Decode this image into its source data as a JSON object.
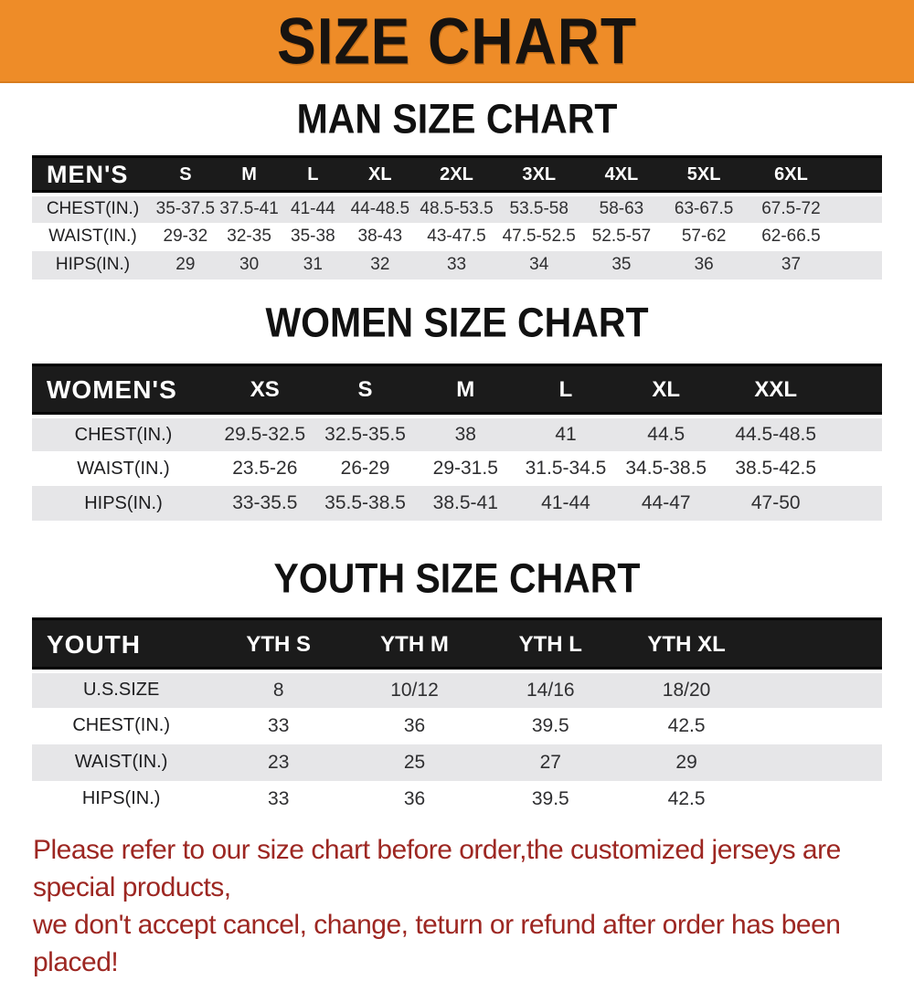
{
  "banner": {
    "title": "SIZE CHART"
  },
  "sections": [
    {
      "heading": "MAN SIZE CHART",
      "table": {
        "header": [
          "MEN'S",
          "S",
          "M",
          "L",
          "XL",
          "2XL",
          "3XL",
          "4XL",
          "5XL",
          "6XL"
        ],
        "rows": [
          {
            "label": "CHEST(IN.)",
            "values": [
              "35-37.5",
              "37.5-41",
              "41-44",
              "44-48.5",
              "48.5-53.5",
              "53.5-58",
              "58-63",
              "63-67.5",
              "67.5-72"
            ]
          },
          {
            "label": "WAIST(IN.)",
            "values": [
              "29-32",
              "32-35",
              "35-38",
              "38-43",
              "43-47.5",
              "47.5-52.5",
              "52.5-57",
              "57-62",
              "62-66.5"
            ]
          },
          {
            "label": "HIPS(IN.)",
            "values": [
              "29",
              "30",
              "31",
              "32",
              "33",
              "34",
              "35",
              "36",
              "37"
            ]
          }
        ]
      }
    },
    {
      "heading": "WOMEN SIZE CHART",
      "table": {
        "header": [
          "WOMEN'S",
          "XS",
          "S",
          "M",
          "L",
          "XL",
          "XXL"
        ],
        "rows": [
          {
            "label": "CHEST(IN.)",
            "values": [
              "29.5-32.5",
              "32.5-35.5",
              "38",
              "41",
              "44.5",
              "44.5-48.5"
            ]
          },
          {
            "label": "WAIST(IN.)",
            "values": [
              "23.5-26",
              "26-29",
              "29-31.5",
              "31.5-34.5",
              "34.5-38.5",
              "38.5-42.5"
            ]
          },
          {
            "label": "HIPS(IN.)",
            "values": [
              "33-35.5",
              "35.5-38.5",
              "38.5-41",
              "41-44",
              "44-47",
              "47-50"
            ]
          }
        ]
      }
    },
    {
      "heading": "YOUTH SIZE CHART",
      "table": {
        "header": [
          "YOUTH",
          "YTH S",
          "YTH M",
          "YTH L",
          "YTH XL"
        ],
        "rows": [
          {
            "label": "U.S.SIZE",
            "values": [
              "8",
              "10/12",
              "14/16",
              "18/20"
            ]
          },
          {
            "label": "CHEST(IN.)",
            "values": [
              "33",
              "36",
              "39.5",
              "42.5"
            ]
          },
          {
            "label": "WAIST(IN.)",
            "values": [
              "23",
              "25",
              "27",
              "29"
            ]
          },
          {
            "label": "HIPS(IN.)",
            "values": [
              "33",
              "36",
              "39.5",
              "42.5"
            ]
          }
        ]
      }
    }
  ],
  "footer": {
    "line1": "Please refer to our size chart before order,the customized jerseys are special products,",
    "line2": "we don't accept cancel, change, teturn or refund after order has been placed!"
  },
  "colors": {
    "banner_bg": "#ee8c28",
    "banner_text": "#171310",
    "header_bar_bg": "#1b1b1b",
    "header_bar_text": "#ffffff",
    "band_row_bg": "#e6e6e8",
    "heading_text": "#111111",
    "value_text": "#2f2f31",
    "footer_text": "#9d2722"
  }
}
